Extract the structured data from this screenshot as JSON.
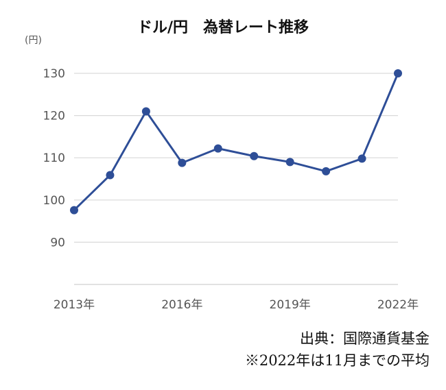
{
  "chart_data": {
    "type": "line",
    "title": "ドル/円　為替レート推移",
    "ylabel": "(円)",
    "xlabel": "",
    "x": [
      "2013年",
      "2014年",
      "2015年",
      "2016年",
      "2017年",
      "2018年",
      "2019年",
      "2020年",
      "2021年",
      "2022年"
    ],
    "x_tick_labels": [
      "2013年",
      "2016年",
      "2019年",
      "2022年"
    ],
    "series": [
      {
        "values": [
          97.6,
          105.9,
          121.0,
          108.8,
          112.2,
          110.4,
          109.0,
          106.8,
          109.8,
          130.0
        ]
      }
    ],
    "y_ticks": [
      90,
      100,
      110,
      120,
      130
    ],
    "ylim": [
      80,
      135
    ],
    "grid": true,
    "legend": "none",
    "colors": {
      "line": "#2E4E97",
      "grid": "#D9D9D9",
      "axis": "#D9D9D9"
    }
  },
  "notes": {
    "source": "出典：国際通貨基金",
    "footnote": "※2022年は11月までの平均"
  }
}
